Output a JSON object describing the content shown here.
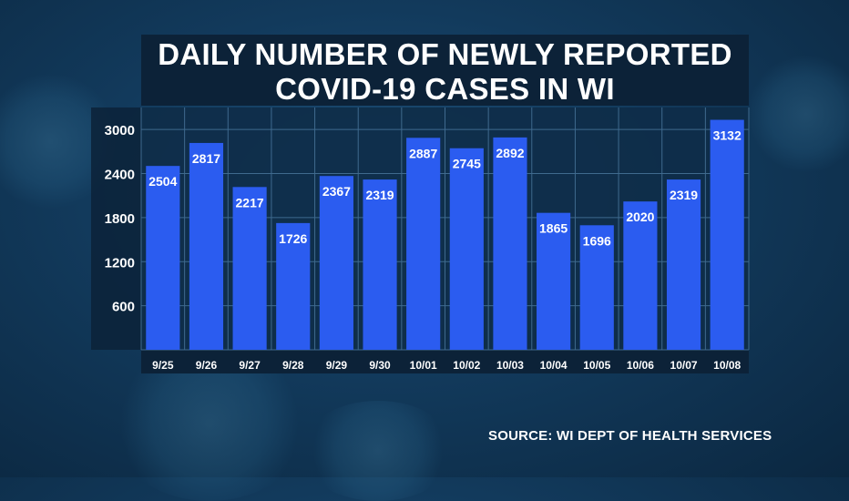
{
  "colors": {
    "bar": "#2b5cf0",
    "plot_bg": "#0e2c48",
    "grid": "#3f6a8e",
    "text": "#ffffff"
  },
  "chart_data": {
    "type": "bar",
    "title_lines": [
      "DAILY NUMBER OF NEWLY REPORTED",
      "COVID-19 CASES IN WI"
    ],
    "categories": [
      "9/25",
      "9/26",
      "9/27",
      "9/28",
      "9/29",
      "9/30",
      "10/01",
      "10/02",
      "10/03",
      "10/04",
      "10/05",
      "10/06",
      "10/07",
      "10/08"
    ],
    "values": [
      2504,
      2817,
      2217,
      1726,
      2367,
      2319,
      2887,
      2745,
      2892,
      1865,
      1696,
      2020,
      2319,
      3132
    ],
    "yticks": [
      600,
      1200,
      1800,
      2400,
      3000
    ],
    "ylim": [
      0,
      3300
    ],
    "grid": true,
    "source": "SOURCE: WI DEPT OF HEALTH SERVICES"
  }
}
